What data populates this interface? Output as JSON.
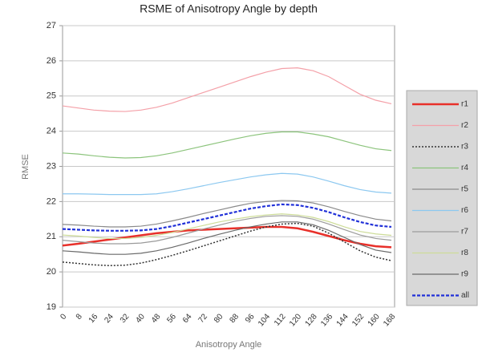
{
  "chart_data": {
    "type": "line",
    "title": "RSME of Anisotropy Angle by depth",
    "x_label": "Anisotropy Angle",
    "y_label": "RMSE",
    "categories": [
      "0",
      "8",
      "16",
      "24",
      "32",
      "40",
      "48",
      "56",
      "64",
      "72",
      "80",
      "88",
      "96",
      "104",
      "112",
      "120",
      "128",
      "136",
      "144",
      "152",
      "160",
      "168"
    ],
    "ylim": [
      19,
      27
    ],
    "yticks": [
      19,
      20,
      21,
      22,
      23,
      24,
      25,
      26,
      27
    ],
    "grid": true,
    "legend": "right",
    "series": [
      {
        "name": "r1",
        "color": "#e8302a",
        "width": 2.5,
        "style": "solid",
        "values": [
          20.75,
          20.8,
          20.86,
          20.92,
          20.98,
          21.04,
          21.1,
          21.14,
          21.18,
          21.2,
          21.22,
          21.24,
          21.26,
          21.28,
          21.28,
          21.24,
          21.14,
          21.02,
          20.9,
          20.8,
          20.73,
          20.7
        ]
      },
      {
        "name": "r2",
        "color": "#f4a0a8",
        "width": 1.2,
        "style": "solid",
        "values": [
          24.72,
          24.66,
          24.6,
          24.57,
          24.56,
          24.6,
          24.68,
          24.8,
          24.95,
          25.1,
          25.25,
          25.4,
          25.55,
          25.68,
          25.78,
          25.8,
          25.72,
          25.55,
          25.3,
          25.05,
          24.88,
          24.78
        ]
      },
      {
        "name": "r3",
        "color": "#333333",
        "width": 1.5,
        "style": "dotted",
        "values": [
          20.28,
          20.24,
          20.2,
          20.18,
          20.19,
          20.25,
          20.35,
          20.47,
          20.6,
          20.74,
          20.88,
          21.02,
          21.16,
          21.28,
          21.36,
          21.38,
          21.3,
          21.1,
          20.85,
          20.6,
          20.42,
          20.32
        ]
      },
      {
        "name": "r4",
        "color": "#8cc47c",
        "width": 1.2,
        "style": "solid",
        "values": [
          23.38,
          23.35,
          23.3,
          23.26,
          23.24,
          23.25,
          23.3,
          23.38,
          23.48,
          23.58,
          23.68,
          23.78,
          23.87,
          23.94,
          23.98,
          23.98,
          23.92,
          23.84,
          23.72,
          23.6,
          23.5,
          23.45
        ]
      },
      {
        "name": "r5",
        "color": "#8a8a8a",
        "width": 1.2,
        "style": "solid",
        "values": [
          21.35,
          21.33,
          21.3,
          21.28,
          21.28,
          21.3,
          21.36,
          21.45,
          21.55,
          21.66,
          21.76,
          21.86,
          21.95,
          22.0,
          22.03,
          22.02,
          21.96,
          21.85,
          21.72,
          21.6,
          21.5,
          21.45
        ]
      },
      {
        "name": "r6",
        "color": "#8cc8f0",
        "width": 1.2,
        "style": "solid",
        "values": [
          22.22,
          22.22,
          22.21,
          22.2,
          22.2,
          22.2,
          22.22,
          22.28,
          22.36,
          22.45,
          22.54,
          22.62,
          22.7,
          22.76,
          22.8,
          22.78,
          22.7,
          22.58,
          22.45,
          22.34,
          22.27,
          22.24
        ]
      },
      {
        "name": "r7",
        "color": "#9a9a9a",
        "width": 1.2,
        "style": "solid",
        "values": [
          20.9,
          20.86,
          20.82,
          20.8,
          20.8,
          20.82,
          20.88,
          20.98,
          21.1,
          21.22,
          21.33,
          21.44,
          21.52,
          21.58,
          21.6,
          21.58,
          21.5,
          21.36,
          21.2,
          21.05,
          20.95,
          20.9
        ]
      },
      {
        "name": "r8",
        "color": "#cddc98",
        "width": 1.2,
        "style": "solid",
        "values": [
          21.05,
          21.02,
          20.98,
          20.95,
          20.95,
          20.98,
          21.04,
          21.12,
          21.22,
          21.32,
          21.42,
          21.5,
          21.57,
          21.62,
          21.65,
          21.62,
          21.55,
          21.43,
          21.28,
          21.15,
          21.08,
          21.04
        ]
      },
      {
        "name": "r9",
        "color": "#6a6a6a",
        "width": 1.2,
        "style": "solid",
        "values": [
          20.6,
          20.57,
          20.53,
          20.5,
          20.5,
          20.53,
          20.6,
          20.7,
          20.82,
          20.95,
          21.07,
          21.18,
          21.28,
          21.36,
          21.42,
          21.42,
          21.34,
          21.18,
          20.98,
          20.78,
          20.62,
          20.55
        ]
      },
      {
        "name": "all",
        "color": "#2030d8",
        "width": 2.2,
        "style": "dashed",
        "values": [
          21.22,
          21.2,
          21.18,
          21.17,
          21.17,
          21.18,
          21.22,
          21.3,
          21.4,
          21.5,
          21.6,
          21.7,
          21.8,
          21.87,
          21.92,
          21.9,
          21.82,
          21.7,
          21.55,
          21.42,
          21.32,
          21.28
        ]
      }
    ]
  }
}
